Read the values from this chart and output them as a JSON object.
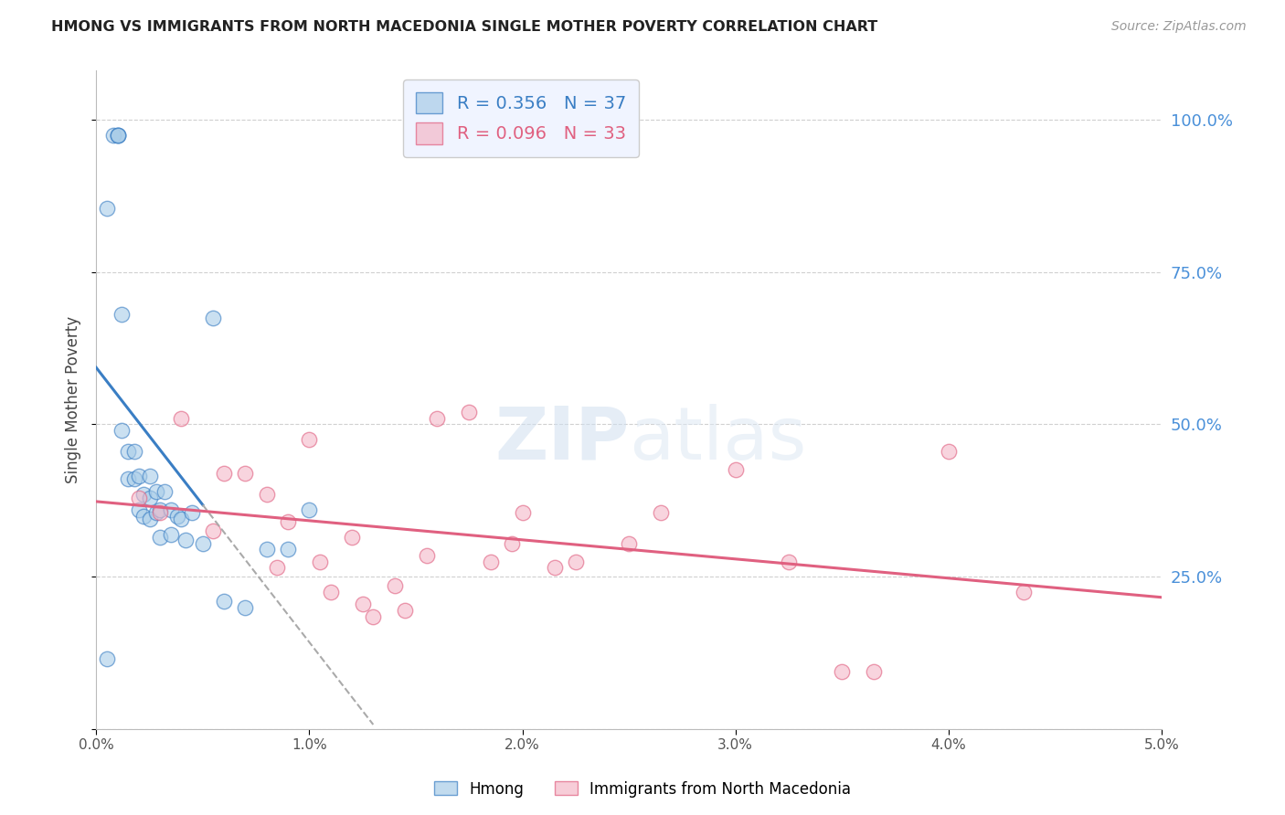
{
  "title": "HMONG VS IMMIGRANTS FROM NORTH MACEDONIA SINGLE MOTHER POVERTY CORRELATION CHART",
  "source": "Source: ZipAtlas.com",
  "ylabel": "Single Mother Poverty",
  "y_ticks": [
    0.0,
    0.25,
    0.5,
    0.75,
    1.0
  ],
  "y_tick_labels": [
    "",
    "25.0%",
    "50.0%",
    "75.0%",
    "100.0%"
  ],
  "x_lim": [
    0.0,
    0.05
  ],
  "y_lim": [
    0.0,
    1.08
  ],
  "hmong_R": 0.356,
  "hmong_N": 37,
  "nmacedonia_R": 0.096,
  "nmacedonia_N": 33,
  "hmong_color": "#a8cce8",
  "nmacedonia_color": "#f4b8c8",
  "hmong_line_color": "#3a7ec4",
  "nmacedonia_line_color": "#e06080",
  "legend_box_color": "#f0f4ff",
  "watermark_color": "#d0dff0",
  "title_color": "#222222",
  "axis_label_color": "#444444",
  "tick_color_y_right": "#4a90d9",
  "grid_color": "#d0d0d0",
  "hmong_x": [
    0.0008,
    0.001,
    0.001,
    0.001,
    0.0012,
    0.0012,
    0.0015,
    0.0015,
    0.0018,
    0.0018,
    0.002,
    0.002,
    0.0022,
    0.0022,
    0.0025,
    0.0025,
    0.0025,
    0.0028,
    0.0028,
    0.003,
    0.003,
    0.0032,
    0.0035,
    0.0035,
    0.0038,
    0.004,
    0.0042,
    0.0045,
    0.005,
    0.0055,
    0.006,
    0.007,
    0.008,
    0.009,
    0.01,
    0.0005,
    0.0005
  ],
  "hmong_y": [
    0.975,
    0.975,
    0.975,
    0.975,
    0.68,
    0.49,
    0.455,
    0.41,
    0.455,
    0.41,
    0.415,
    0.36,
    0.385,
    0.35,
    0.415,
    0.38,
    0.345,
    0.39,
    0.355,
    0.36,
    0.315,
    0.39,
    0.36,
    0.32,
    0.35,
    0.345,
    0.31,
    0.355,
    0.305,
    0.675,
    0.21,
    0.2,
    0.295,
    0.295,
    0.36,
    0.115,
    0.855
  ],
  "nmacedonia_x": [
    0.002,
    0.003,
    0.004,
    0.0055,
    0.006,
    0.007,
    0.008,
    0.0085,
    0.009,
    0.01,
    0.0105,
    0.011,
    0.012,
    0.0125,
    0.013,
    0.014,
    0.0145,
    0.0155,
    0.016,
    0.0175,
    0.0185,
    0.0195,
    0.02,
    0.0215,
    0.0225,
    0.025,
    0.0265,
    0.03,
    0.0325,
    0.035,
    0.0365,
    0.04,
    0.0435
  ],
  "nmacedonia_y": [
    0.38,
    0.355,
    0.51,
    0.325,
    0.42,
    0.42,
    0.385,
    0.265,
    0.34,
    0.475,
    0.275,
    0.225,
    0.315,
    0.205,
    0.185,
    0.235,
    0.195,
    0.285,
    0.51,
    0.52,
    0.275,
    0.305,
    0.355,
    0.265,
    0.275,
    0.305,
    0.355,
    0.425,
    0.275,
    0.095,
    0.095,
    0.455,
    0.225
  ],
  "x_ticks": [
    0.0,
    0.01,
    0.02,
    0.03,
    0.04,
    0.05
  ],
  "x_tick_labels": [
    "0.0%",
    "1.0%",
    "2.0%",
    "3.0%",
    "4.0%",
    "5.0%"
  ]
}
